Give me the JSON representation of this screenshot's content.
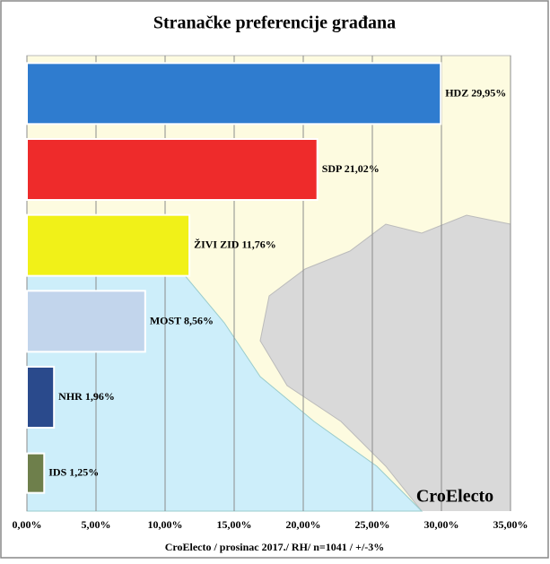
{
  "chart_data": {
    "type": "bar",
    "orientation": "horizontal",
    "title": "Stranačke preferencije građana",
    "categories": [
      "HDZ",
      "SDP",
      "ŽIVI ZID",
      "MOST",
      "NHR",
      "IDS"
    ],
    "values": [
      29.95,
      21.02,
      11.76,
      8.56,
      1.96,
      1.25
    ],
    "value_labels": [
      "29,95%",
      "21,02%",
      "11,76%",
      "8,56%",
      "1,96%",
      "1,25%"
    ],
    "colors": [
      "#2f7ccf",
      "#ee2b2b",
      "#f1f118",
      "#c2d5ec",
      "#2a4a8c",
      "#6e7f4b"
    ],
    "xlim": [
      0,
      35
    ],
    "xticks": [
      {
        "value": 0,
        "label": "0,00%"
      },
      {
        "value": 5,
        "label": "5,00%"
      },
      {
        "value": 10,
        "label": "10,00%"
      },
      {
        "value": 15,
        "label": "15,00%"
      },
      {
        "value": 20,
        "label": "20,00%"
      },
      {
        "value": 25,
        "label": "25,00%"
      },
      {
        "value": 30,
        "label": "30,00%"
      },
      {
        "value": 35,
        "label": "35,00%"
      }
    ],
    "grid": true,
    "watermark": "CroElecto",
    "footer": "CroElecto / prosinac 2017./ RH/ n=1041 / +/-3%"
  }
}
